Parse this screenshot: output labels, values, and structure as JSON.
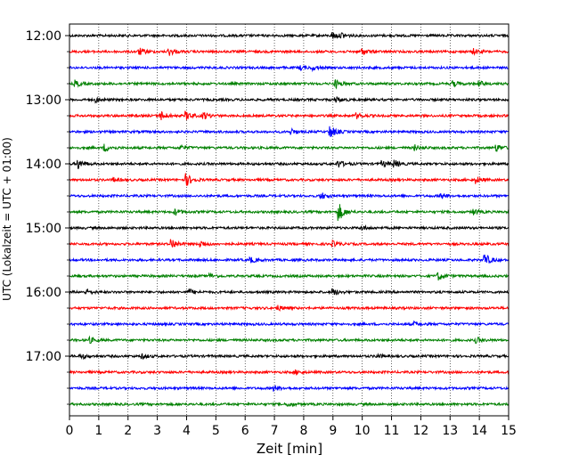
{
  "chart_data": {
    "type": "line",
    "title": "",
    "xlabel": "Zeit  [min]",
    "ylabel": "UTC (Lokalzeit = UTC + 01:00)",
    "xlim": [
      0,
      15
    ],
    "x_ticks": [
      "0",
      "1",
      "2",
      "3",
      "4",
      "5",
      "6",
      "7",
      "8",
      "9",
      "10",
      "11",
      "12",
      "13",
      "14",
      "15"
    ],
    "y_ticks": [
      "12:00",
      "13:00",
      "14:00",
      "15:00",
      "16:00",
      "17:00"
    ],
    "grid": "vertical dotted",
    "trace_interval_minutes": 15,
    "color_cycle": [
      "#000000",
      "#ff0000",
      "#0000ff",
      "#008000"
    ],
    "traces": [
      {
        "start": "12:00",
        "color": "#000000",
        "events": [
          [
            9.0,
            0.5
          ],
          [
            9.3,
            0.4
          ]
        ]
      },
      {
        "start": "12:15",
        "color": "#ff0000",
        "events": [
          [
            2.4,
            0.5
          ],
          [
            3.4,
            0.6
          ],
          [
            10.0,
            0.5
          ],
          [
            13.8,
            0.4
          ]
        ]
      },
      {
        "start": "12:30",
        "color": "#0000ff",
        "events": [
          [
            7.9,
            0.3
          ],
          [
            8.3,
            0.3
          ]
        ]
      },
      {
        "start": "12:45",
        "color": "#008000",
        "events": [
          [
            0.2,
            0.5
          ],
          [
            9.1,
            0.6
          ],
          [
            13.1,
            0.4
          ],
          [
            14.0,
            0.4
          ]
        ]
      },
      {
        "start": "13:00",
        "color": "#000000",
        "events": [
          [
            0.9,
            0.3
          ],
          [
            9.1,
            0.4
          ]
        ]
      },
      {
        "start": "13:15",
        "color": "#ff0000",
        "events": [
          [
            3.1,
            0.8
          ],
          [
            4.0,
            0.6
          ],
          [
            4.6,
            0.5
          ],
          [
            9.8,
            0.4
          ]
        ]
      },
      {
        "start": "13:30",
        "color": "#0000ff",
        "events": [
          [
            8.9,
            1.0
          ],
          [
            7.6,
            0.4
          ]
        ]
      },
      {
        "start": "13:45",
        "color": "#008000",
        "events": [
          [
            1.2,
            0.6
          ],
          [
            3.8,
            0.4
          ],
          [
            11.8,
            0.4
          ],
          [
            14.6,
            0.5
          ]
        ]
      },
      {
        "start": "14:00",
        "color": "#000000",
        "events": [
          [
            0.3,
            0.8
          ],
          [
            9.2,
            0.5
          ],
          [
            10.7,
            0.4
          ],
          [
            11.1,
            0.5
          ]
        ]
      },
      {
        "start": "14:15",
        "color": "#ff0000",
        "events": [
          [
            4.0,
            0.9
          ],
          [
            1.5,
            0.3
          ],
          [
            13.9,
            0.5
          ]
        ]
      },
      {
        "start": "14:30",
        "color": "#0000ff",
        "events": [
          [
            8.6,
            0.5
          ],
          [
            12.7,
            0.4
          ]
        ]
      },
      {
        "start": "14:45",
        "color": "#008000",
        "events": [
          [
            9.2,
            1.4
          ],
          [
            3.6,
            0.5
          ],
          [
            13.8,
            0.4
          ]
        ]
      },
      {
        "start": "15:00",
        "color": "#000000",
        "events": [
          [
            10.0,
            0.3
          ]
        ]
      },
      {
        "start": "15:15",
        "color": "#ff0000",
        "events": [
          [
            3.5,
            0.8
          ],
          [
            4.5,
            0.5
          ],
          [
            9.0,
            0.4
          ]
        ]
      },
      {
        "start": "15:30",
        "color": "#0000ff",
        "events": [
          [
            14.2,
            0.9
          ],
          [
            6.2,
            0.4
          ]
        ]
      },
      {
        "start": "15:45",
        "color": "#008000",
        "events": [
          [
            12.6,
            0.6
          ],
          [
            4.8,
            0.3
          ]
        ]
      },
      {
        "start": "16:00",
        "color": "#000000",
        "events": [
          [
            0.6,
            0.4
          ],
          [
            4.1,
            0.4
          ],
          [
            9.0,
            0.5
          ]
        ]
      },
      {
        "start": "16:15",
        "color": "#ff0000",
        "events": [
          [
            7.1,
            0.4
          ]
        ]
      },
      {
        "start": "16:30",
        "color": "#0000ff",
        "events": [
          [
            11.8,
            0.3
          ]
        ]
      },
      {
        "start": "16:45",
        "color": "#008000",
        "events": [
          [
            0.7,
            0.4
          ],
          [
            13.9,
            0.4
          ]
        ]
      },
      {
        "start": "17:00",
        "color": "#000000",
        "events": [
          [
            0.4,
            0.4
          ],
          [
            2.5,
            0.3
          ],
          [
            10.5,
            0.3
          ]
        ]
      },
      {
        "start": "17:15",
        "color": "#ff0000",
        "events": [
          [
            7.7,
            0.3
          ]
        ]
      },
      {
        "start": "17:30",
        "color": "#0000ff",
        "events": [
          [
            7.0,
            0.4
          ]
        ]
      },
      {
        "start": "17:45",
        "color": "#008000",
        "events": [
          [
            7.5,
            0.3
          ]
        ]
      }
    ]
  }
}
